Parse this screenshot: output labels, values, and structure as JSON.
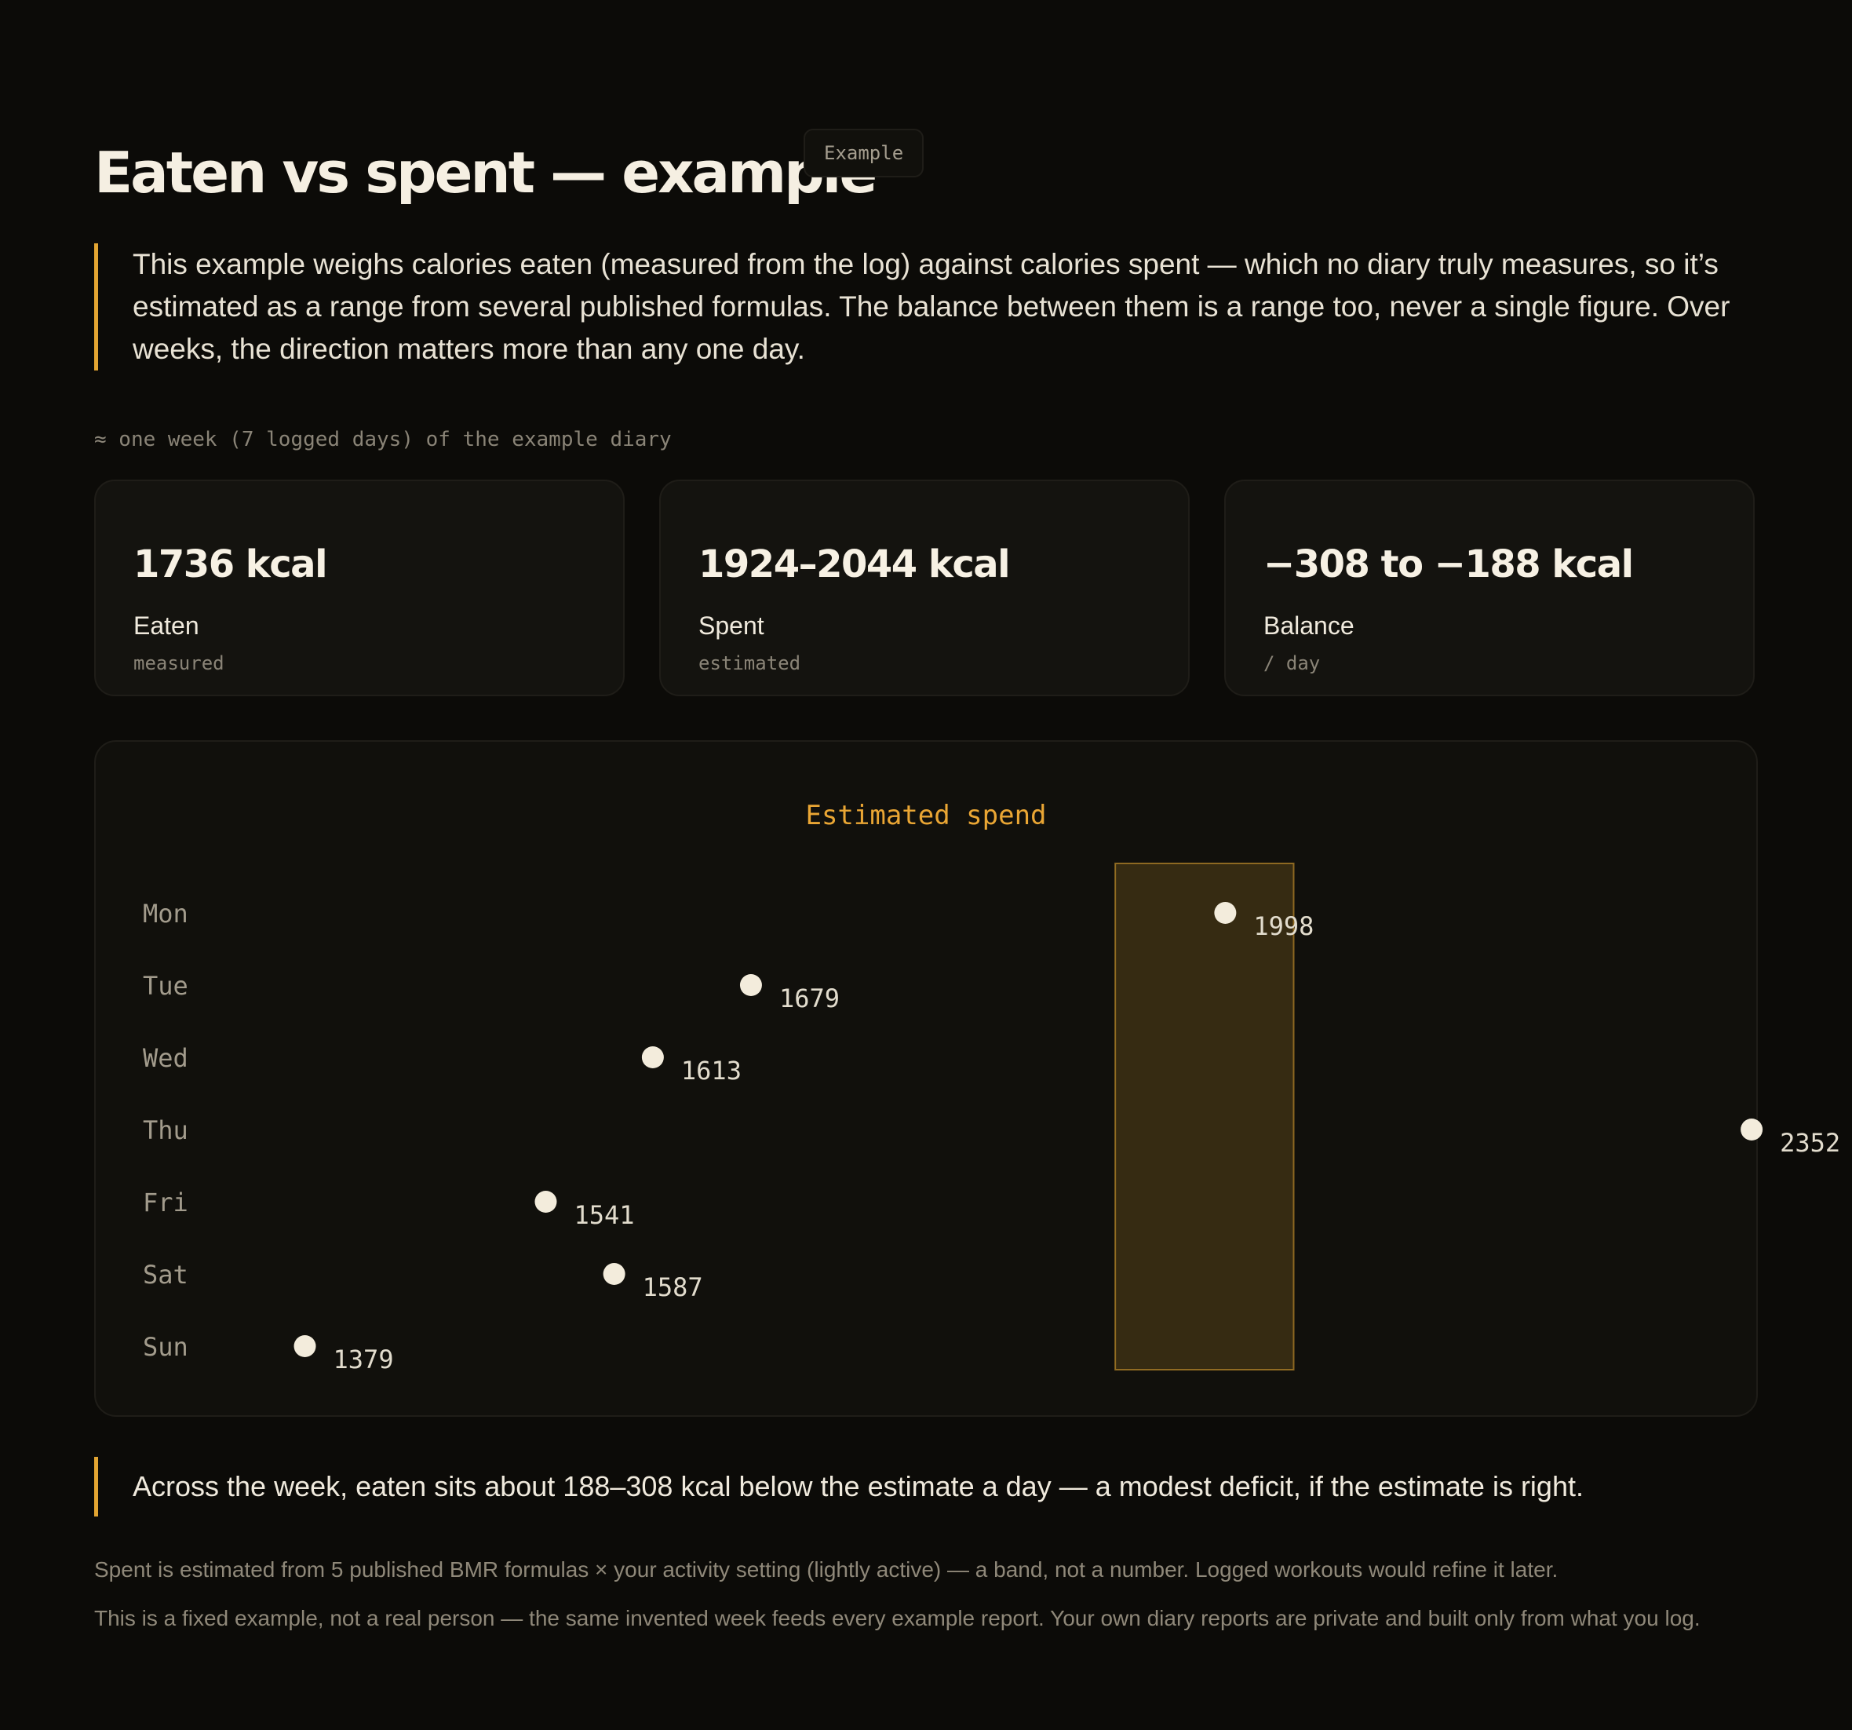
{
  "header": {
    "title": "Eaten vs spent — example",
    "badge": "Example"
  },
  "intro": "This example weighs calories eaten (measured from the log) against calories spent — which no diary truly measures, so it’s estimated as a range from several published formulas. The balance between them is a range too, never a single figure. Over weeks, the direction matters more than any one day.",
  "caption": "≈ one week (7 logged days) of the example diary",
  "stats": [
    {
      "value": "1736 kcal",
      "label": "Eaten",
      "sub": "measured"
    },
    {
      "value": "1924–2044 kcal",
      "label": "Spent",
      "sub": "estimated"
    },
    {
      "value": "−308 to −188 kcal",
      "label": "Balance",
      "sub": "/ day"
    }
  ],
  "chart_data": {
    "type": "scatter",
    "title": "Estimated spend",
    "categories": [
      "Mon",
      "Tue",
      "Wed",
      "Thu",
      "Fri",
      "Sat",
      "Sun"
    ],
    "values": [
      1998,
      1679,
      1613,
      2352,
      1541,
      1587,
      1379
    ],
    "band": [
      1924,
      2044
    ],
    "band_color": "#e3a532",
    "point_color": "#f3ecdc",
    "xlim": [
      1270,
      2410
    ],
    "grid": false,
    "legend": "none"
  },
  "summary": "Across the week, eaten sits about 188–308 kcal below the estimate a day — a modest deficit, if the estimate is right.",
  "footnotes": [
    "Spent is estimated from 5 published BMR formulas × your activity setting (lightly active) — a band, not a number. Logged workouts would refine it later.",
    "This is a fixed example, not a real person — the same invented week feeds every example report. Your own diary reports are private and built only from what you log."
  ],
  "colors": {
    "background": "#0c0b08",
    "accent": "#e3a532",
    "card": "#14130f"
  }
}
